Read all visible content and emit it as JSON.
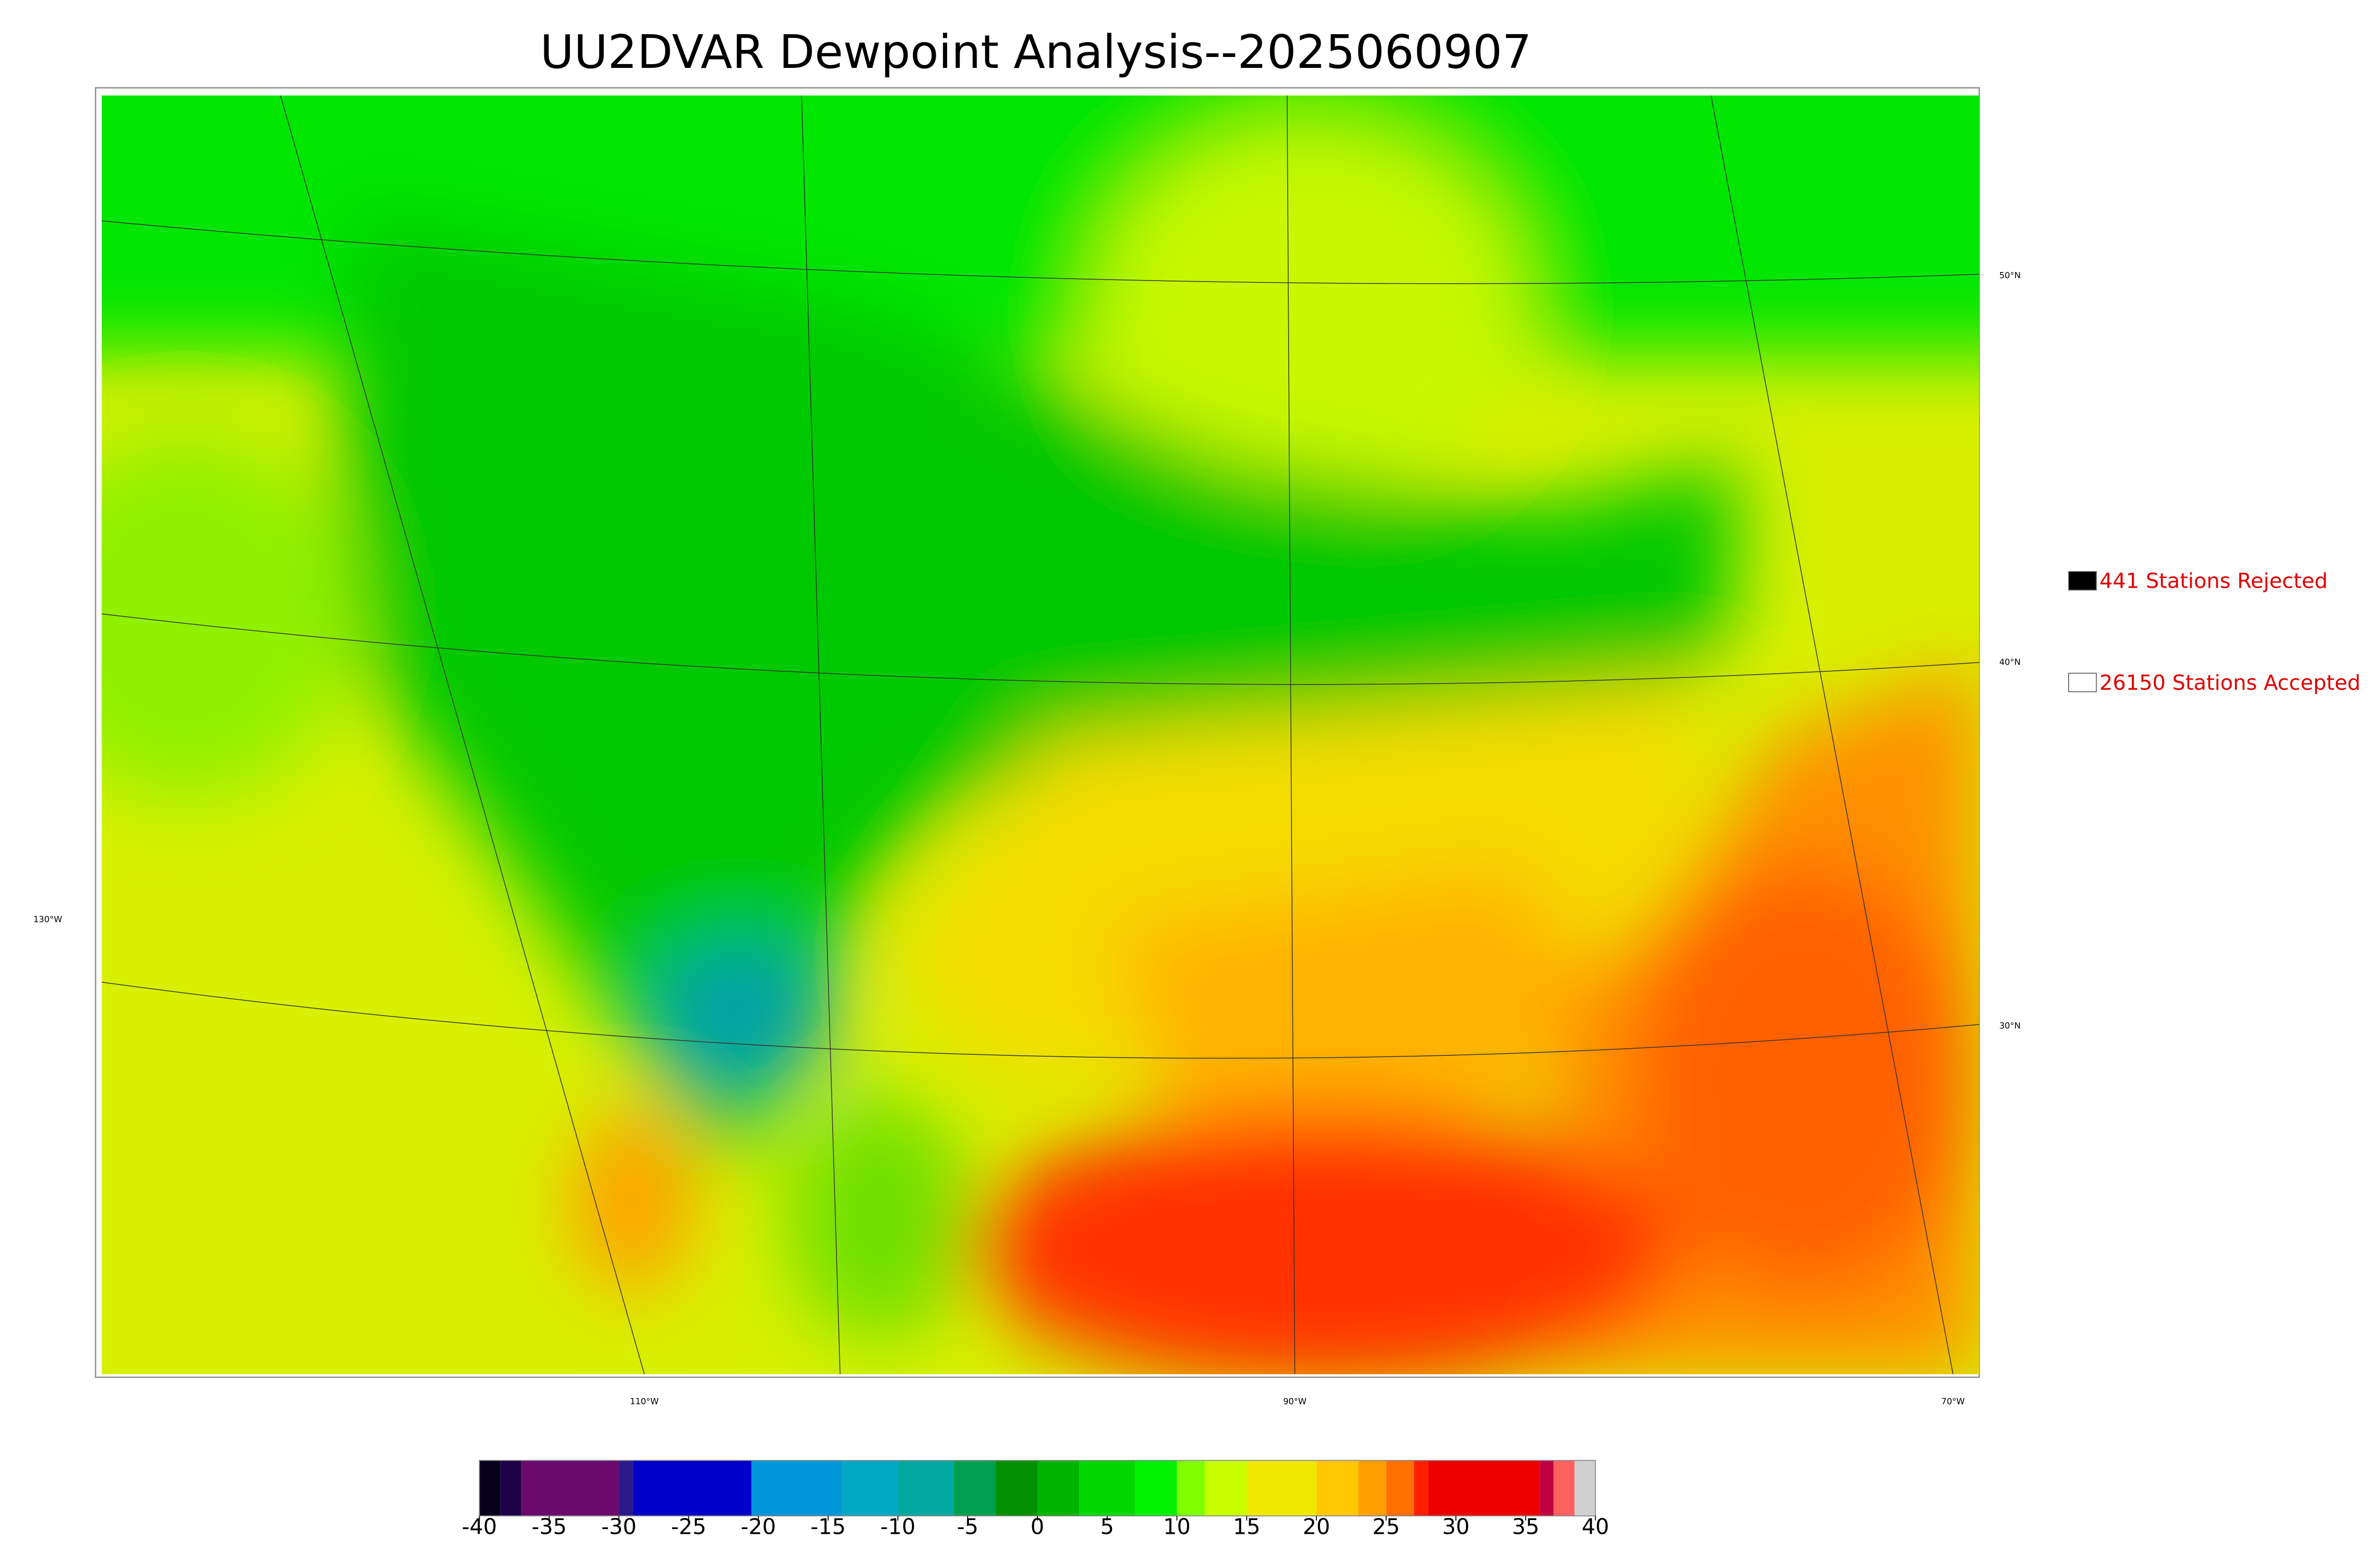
{
  "title": "UU2DVAR Dewpoint Analysis--2025060907",
  "legend": [
    {
      "label": "441 Stations Rejected",
      "color": "#000000"
    },
    {
      "label": "26150 Stations Accepted",
      "color": "#ffffff"
    }
  ],
  "lat_labels": [
    "50°N",
    "40°N",
    "30°N"
  ],
  "lon_labels": [
    "130°W",
    "110°W",
    "90°W",
    "70°W"
  ],
  "colorbar": {
    "lim": [
      -40,
      40
    ],
    "ticks": [
      -40,
      -35,
      -30,
      -25,
      -20,
      -15,
      -10,
      -5,
      0,
      5,
      10,
      15,
      20,
      25,
      30,
      35,
      40
    ],
    "segments": [
      {
        "from": -40,
        "to": -38.5,
        "color": "#06001c"
      },
      {
        "from": -38.5,
        "to": -37,
        "color": "#1e0048"
      },
      {
        "from": -37,
        "to": -30,
        "color": "#6a0a6c"
      },
      {
        "from": -30,
        "to": -29,
        "color": "#2a1a8c"
      },
      {
        "from": -29,
        "to": -20.5,
        "color": "#0000c8"
      },
      {
        "from": -20.5,
        "to": -14,
        "color": "#0096d8"
      },
      {
        "from": -14,
        "to": -10,
        "color": "#00a8c4"
      },
      {
        "from": -10,
        "to": -6,
        "color": "#00a8a0"
      },
      {
        "from": -6,
        "to": -3,
        "color": "#00a050"
      },
      {
        "from": -3,
        "to": 0,
        "color": "#009000"
      },
      {
        "from": 0,
        "to": 3,
        "color": "#00b400"
      },
      {
        "from": 3,
        "to": 7,
        "color": "#00d800"
      },
      {
        "from": 7,
        "to": 10,
        "color": "#00f000"
      },
      {
        "from": 10,
        "to": 12,
        "color": "#80ff00"
      },
      {
        "from": 12,
        "to": 15,
        "color": "#c8ff00"
      },
      {
        "from": 15,
        "to": 20,
        "color": "#f0e800"
      },
      {
        "from": 20,
        "to": 23,
        "color": "#ffc800"
      },
      {
        "from": 23,
        "to": 25,
        "color": "#ffa000"
      },
      {
        "from": 25,
        "to": 27,
        "color": "#ff7000"
      },
      {
        "from": 27,
        "to": 28,
        "color": "#ff2000"
      },
      {
        "from": 28,
        "to": 36,
        "color": "#ee0000"
      },
      {
        "from": 36,
        "to": 37,
        "color": "#c00040"
      },
      {
        "from": 37,
        "to": 38.5,
        "color": "#ff6060"
      },
      {
        "from": 38.5,
        "to": 40,
        "color": "#d0d0d0"
      }
    ]
  }
}
